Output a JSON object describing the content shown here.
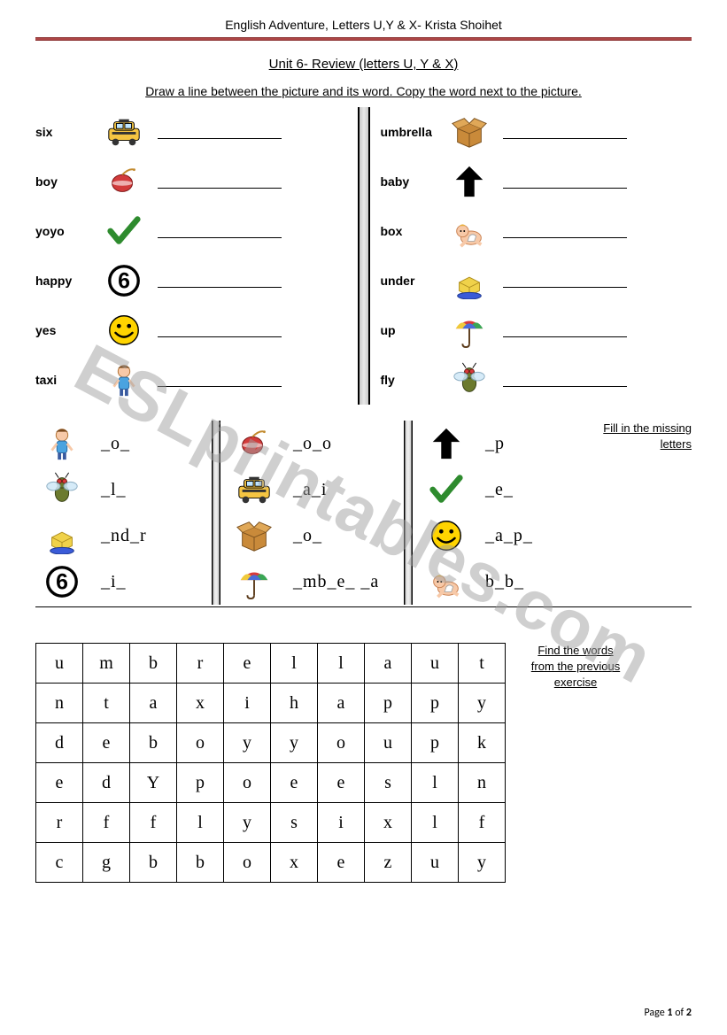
{
  "header": "English Adventure, Letters U,Y & X- Krista Shoihet",
  "title": "Unit 6- Review (letters U, Y & X)",
  "instruction1": "Draw a line between the picture and its word. Copy the word next to the picture.",
  "section1": {
    "left": [
      {
        "word": "six",
        "icon": "taxi"
      },
      {
        "word": "boy",
        "icon": "yoyo"
      },
      {
        "word": "yoyo",
        "icon": "check"
      },
      {
        "word": "happy",
        "icon": "six"
      },
      {
        "word": "yes",
        "icon": "smile"
      },
      {
        "word": "taxi",
        "icon": "boy"
      }
    ],
    "right": [
      {
        "word": "umbrella",
        "icon": "box"
      },
      {
        "word": "baby",
        "icon": "up"
      },
      {
        "word": "box",
        "icon": "baby"
      },
      {
        "word": "under",
        "icon": "under"
      },
      {
        "word": "up",
        "icon": "umbrella"
      },
      {
        "word": "fly",
        "icon": "fly"
      }
    ]
  },
  "section2_caption": "Fill in the missing letters",
  "section2": {
    "col1": [
      {
        "icon": "boy",
        "text": "_o_"
      },
      {
        "icon": "fly",
        "text": "_l_"
      },
      {
        "icon": "under",
        "text": "_nd_r"
      },
      {
        "icon": "six",
        "text": "_i_"
      }
    ],
    "col2": [
      {
        "icon": "yoyo",
        "text": "_o_o"
      },
      {
        "icon": "taxi",
        "text": "_a_i"
      },
      {
        "icon": "box",
        "text": "_o_"
      },
      {
        "icon": "umbrella",
        "text": "_mb_e_ _a"
      }
    ],
    "col3": [
      {
        "icon": "up",
        "text": "_p"
      },
      {
        "icon": "check",
        "text": "_e_"
      },
      {
        "icon": "smile",
        "text": "_a_p_"
      },
      {
        "icon": "baby",
        "text": "b_b_"
      }
    ]
  },
  "section3_caption": "Find the words from the previous exercise",
  "wordsearch": [
    [
      "u",
      "m",
      "b",
      "r",
      "e",
      "l",
      "l",
      "a",
      "u",
      "t"
    ],
    [
      "n",
      "t",
      "a",
      "x",
      "i",
      "h",
      "a",
      "p",
      "p",
      "y"
    ],
    [
      "d",
      "e",
      "b",
      "o",
      "y",
      "y",
      "o",
      "u",
      "p",
      "k"
    ],
    [
      "e",
      "d",
      "Y",
      "p",
      "o",
      "e",
      "e",
      "s",
      "l",
      "n"
    ],
    [
      "r",
      "f",
      "f",
      "l",
      "y",
      "s",
      "i",
      "x",
      "l",
      "f"
    ],
    [
      "c",
      "g",
      "b",
      "b",
      "o",
      "x",
      "e",
      "z",
      "u",
      "y"
    ]
  ],
  "pagenum_prefix": "Page ",
  "pagenum_bold": "1",
  "pagenum_suffix": " of ",
  "pagenum_total": "2",
  "watermark": "ESLprintables.com",
  "icons": {
    "taxi": "taxi",
    "yoyo": "yoyo",
    "check": "check",
    "six": "six",
    "smile": "smile",
    "boy": "boy",
    "box": "box",
    "up": "up",
    "baby": "baby",
    "under": "under",
    "umbrella": "umbrella",
    "fly": "fly"
  },
  "colors": {
    "rule": "#7a2b2b",
    "check": "#2e8b2e",
    "smile": "#ffd400",
    "smile_stroke": "#000",
    "taxi_body": "#f5c542",
    "taxi_dark": "#333",
    "yoyo": "#d23b3b",
    "box": "#c98a3a",
    "umbrella_r": "#d83a3a",
    "umbrella_y": "#f0c93a",
    "umbrella_g": "#3aa655",
    "umbrella_b": "#4a6bd8",
    "baby": "#f7c9a8",
    "fly_body": "#6b7a2e",
    "fly_wing": "#cfe8f7",
    "under_box": "#f0d24a",
    "under_cloth": "#3a5bd8"
  }
}
